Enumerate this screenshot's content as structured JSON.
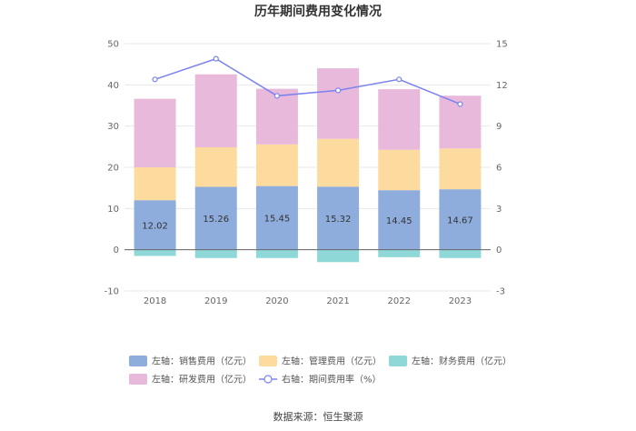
{
  "chart_data": {
    "type": "bar",
    "title": "历年期间费用变化情况",
    "categories": [
      "2018",
      "2019",
      "2020",
      "2021",
      "2022",
      "2023"
    ],
    "stacked": true,
    "series": [
      {
        "name": "左轴：销售费用（亿元）",
        "axis": "left",
        "color": "#8eacdc",
        "values": [
          12.02,
          15.26,
          15.45,
          15.32,
          14.45,
          14.67
        ]
      },
      {
        "name": "左轴：管理费用（亿元）",
        "axis": "left",
        "color": "#fddb9f",
        "values": [
          8.0,
          9.6,
          10.1,
          11.6,
          9.8,
          9.9
        ]
      },
      {
        "name": "左轴：财务费用（亿元）",
        "axis": "left",
        "color": "#8ed8d8",
        "values": [
          -1.5,
          -2.0,
          -2.0,
          -3.0,
          -1.8,
          -2.0
        ]
      },
      {
        "name": "左轴：研发费用（亿元）",
        "axis": "left",
        "color": "#e8b9db",
        "values": [
          16.6,
          17.7,
          13.5,
          17.1,
          14.7,
          12.8
        ]
      },
      {
        "name": "右轴：期间费用率（%）",
        "axis": "right",
        "type": "line",
        "color": "#7b83ee",
        "values": [
          12.4,
          13.9,
          11.2,
          11.6,
          12.4,
          10.6
        ]
      }
    ],
    "data_labels": [
      "12.02",
      "15.26",
      "15.45",
      "15.32",
      "14.45",
      "14.67"
    ],
    "left_axis": {
      "min": -10,
      "max": 50,
      "ticks": [
        "50",
        "40",
        "30",
        "20",
        "10",
        "0",
        "-10"
      ],
      "tick_values": [
        50,
        40,
        30,
        20,
        10,
        0,
        -10
      ]
    },
    "right_axis": {
      "min": -3,
      "max": 15,
      "ticks": [
        "15",
        "12",
        "9",
        "6",
        "3",
        "0",
        "-3"
      ],
      "tick_values": [
        15,
        12,
        9,
        6,
        3,
        0,
        -3
      ]
    },
    "legend_position": "bottom",
    "source": "数据来源：恒生聚源"
  }
}
